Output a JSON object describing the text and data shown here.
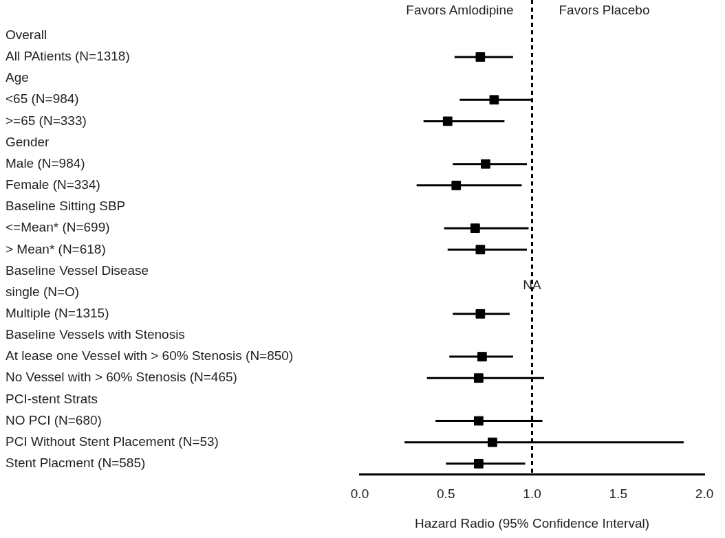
{
  "chart_data": {
    "type": "scatter",
    "orientation": "horizontal",
    "xlabel": "Hazard Radio (95% Confidence Interval)",
    "categories": [
      "Overall",
      "All PAtients (N=1318)",
      "Age",
      "<65 (N=984)",
      ">=65 (N=333)",
      "Gender",
      "Male (N=984)",
      "Female (N=334)",
      "Baseline Sitting SBP",
      "<=Mean* (N=699)",
      "> Mean* (N=618)",
      "Baseline Vessel Disease",
      "single (N=O)",
      "Multiple (N=1315)",
      "Baseline Vessels with Stenosis",
      "At lease one Vessel with > 60% Stenosis (N=850)",
      "No Vessel with > 60% Stenosis (N=465)",
      "PCI-stent Strats",
      "NO PCI (N=680)",
      "PCI Without Stent Placement (N=53)",
      "Stent Placment (N=585)"
    ],
    "series": [
      {
        "color": "#000000",
        "values": [
          null,
          0.7,
          null,
          0.78,
          0.51,
          null,
          0.73,
          0.56,
          null,
          0.67,
          0.7,
          null,
          null,
          0.7,
          null,
          0.71,
          0.69,
          null,
          0.69,
          0.77,
          0.69
        ],
        "errors": [
          null,
          [
            0.55,
            0.89
          ],
          null,
          [
            0.58,
            1.0
          ],
          [
            0.37,
            0.84
          ],
          null,
          [
            0.54,
            0.97
          ],
          [
            0.33,
            0.94
          ],
          null,
          [
            0.49,
            0.98
          ],
          [
            0.51,
            0.97
          ],
          null,
          null,
          [
            0.54,
            0.87
          ],
          null,
          [
            0.52,
            0.89
          ],
          [
            0.39,
            1.07
          ],
          null,
          [
            0.44,
            1.06
          ],
          [
            0.26,
            1.88
          ],
          [
            0.5,
            0.96
          ]
        ]
      }
    ],
    "xlim": [
      0,
      2
    ],
    "xticks": [
      {
        "value": 0,
        "label": "0.0"
      },
      {
        "value": 0.5,
        "label": "0.5"
      },
      {
        "value": 1,
        "label": "1.0"
      },
      {
        "value": 1.5,
        "label": "1.5"
      },
      {
        "value": 2,
        "label": "2.0"
      }
    ],
    "ref_lines": [
      {
        "axis": "x",
        "value": 1,
        "color": "#000000",
        "line_style": "dashed"
      }
    ],
    "annotations": [
      "Favors Amlodipine",
      "Favors Placebo",
      {
        "text": "NA",
        "x": 1,
        "y": "single (N=O)"
      }
    ],
    "marker": "square",
    "grid": false,
    "legend": false
  }
}
